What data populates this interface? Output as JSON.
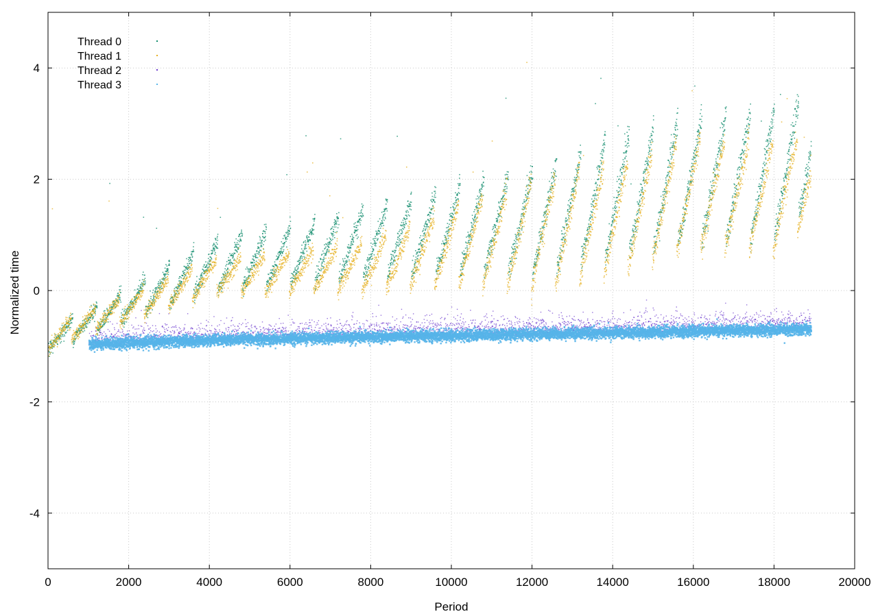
{
  "chart_data": {
    "type": "scatter",
    "title": "",
    "xlabel": "Period",
    "ylabel": "Normalized time",
    "xlim": [
      0,
      20000
    ],
    "ylim": [
      -5,
      5
    ],
    "x_ticks": [
      "0",
      "2000",
      "4000",
      "6000",
      "8000",
      "10000",
      "12000",
      "14000",
      "16000",
      "18000",
      "20000"
    ],
    "y_ticks": [
      "-4",
      "-2",
      "0",
      "2",
      "4"
    ],
    "grid": true,
    "legend_position": "top-left",
    "series": [
      {
        "name": "Thread 0",
        "color": "#0c8a6a",
        "pattern": "sawtooth",
        "x_range": [
          0,
          18900
        ],
        "cycle_length": 600,
        "trough_envelope": [
          [
            0,
            -1.05
          ],
          [
            1000,
            -0.75
          ],
          [
            4000,
            0.0
          ],
          [
            8000,
            0.25
          ],
          [
            10400,
            0.35
          ],
          [
            12000,
            0.3
          ],
          [
            14000,
            0.6
          ],
          [
            16000,
            0.85
          ],
          [
            18000,
            0.95
          ],
          [
            18900,
            1.5
          ]
        ],
        "amplitude_envelope": [
          [
            0,
            0.35
          ],
          [
            1000,
            0.4
          ],
          [
            4000,
            0.9
          ],
          [
            8000,
            1.25
          ],
          [
            10000,
            1.55
          ],
          [
            12000,
            1.9
          ],
          [
            14000,
            2.2
          ],
          [
            18000,
            2.4
          ],
          [
            18900,
            2.0
          ]
        ]
      },
      {
        "name": "Thread 1",
        "color": "#e6b020",
        "pattern": "sawtooth",
        "x_range": [
          0,
          18900
        ],
        "cycle_length": 600,
        "trough_envelope": [
          [
            0,
            -1.05
          ],
          [
            1000,
            -0.75
          ],
          [
            4000,
            -0.05
          ],
          [
            8000,
            0.0
          ],
          [
            10400,
            0.15
          ],
          [
            12000,
            0.0
          ],
          [
            14000,
            0.3
          ],
          [
            16000,
            0.75
          ],
          [
            18000,
            0.7
          ],
          [
            18900,
            1.2
          ]
        ],
        "amplitude_envelope": [
          [
            0,
            0.35
          ],
          [
            1000,
            0.4
          ],
          [
            4000,
            0.6
          ],
          [
            8000,
            0.9
          ],
          [
            10000,
            1.4
          ],
          [
            12000,
            2.0
          ],
          [
            14000,
            2.0
          ],
          [
            18000,
            2.0
          ],
          [
            18900,
            1.6
          ]
        ]
      },
      {
        "name": "Thread 2",
        "color": "#6633cc",
        "pattern": "band",
        "x_range": [
          1000,
          18900
        ],
        "center_envelope": [
          [
            1000,
            -0.95
          ],
          [
            4000,
            -0.88
          ],
          [
            8000,
            -0.82
          ],
          [
            12000,
            -0.77
          ],
          [
            16000,
            -0.72
          ],
          [
            18900,
            -0.68
          ]
        ],
        "spread": 0.35
      },
      {
        "name": "Thread 3",
        "color": "#56b4e9",
        "pattern": "band",
        "x_range": [
          1000,
          18900
        ],
        "center_envelope": [
          [
            1000,
            -0.95
          ],
          [
            4000,
            -0.88
          ],
          [
            8000,
            -0.82
          ],
          [
            12000,
            -0.77
          ],
          [
            16000,
            -0.72
          ],
          [
            18900,
            -0.68
          ]
        ],
        "spread": 0.05
      }
    ]
  }
}
